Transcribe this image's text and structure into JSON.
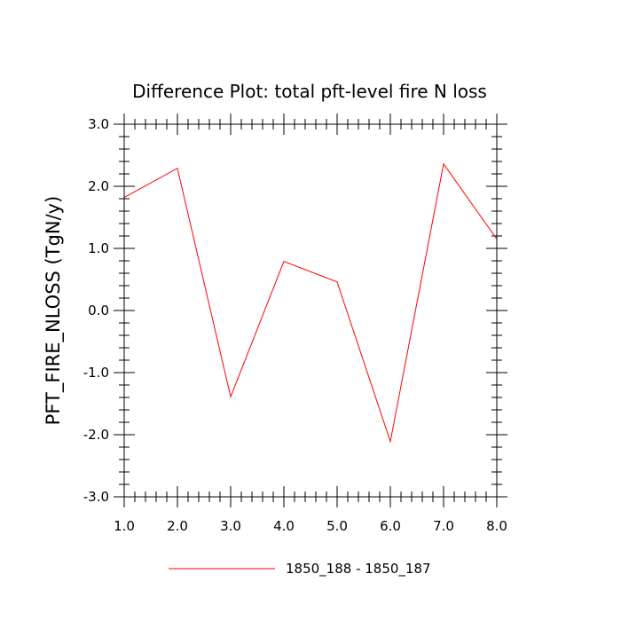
{
  "chart_data": {
    "type": "line",
    "title": "Difference Plot: total pft-level fire N loss",
    "xlabel": "",
    "ylabel": "PFT_FIRE_NLOSS  (TgN/y)",
    "xlim": [
      1.0,
      8.0
    ],
    "ylim": [
      -3.0,
      3.0
    ],
    "x_ticks": [
      "1.0",
      "2.0",
      "3.0",
      "4.0",
      "5.0",
      "6.0",
      "7.0",
      "8.0"
    ],
    "y_ticks": [
      "-3.0",
      "-2.0",
      "-1.0",
      "0.0",
      "1.0",
      "2.0",
      "3.0"
    ],
    "legend_position": "bottom-center",
    "grid": false,
    "series": [
      {
        "name": "1850_188 - 1850_187",
        "color": "#ff0000",
        "x": [
          1,
          2,
          3,
          4,
          5,
          6,
          7,
          8
        ],
        "y": [
          1.82,
          2.29,
          -1.39,
          0.79,
          0.46,
          -2.11,
          2.36,
          1.15
        ]
      }
    ]
  }
}
